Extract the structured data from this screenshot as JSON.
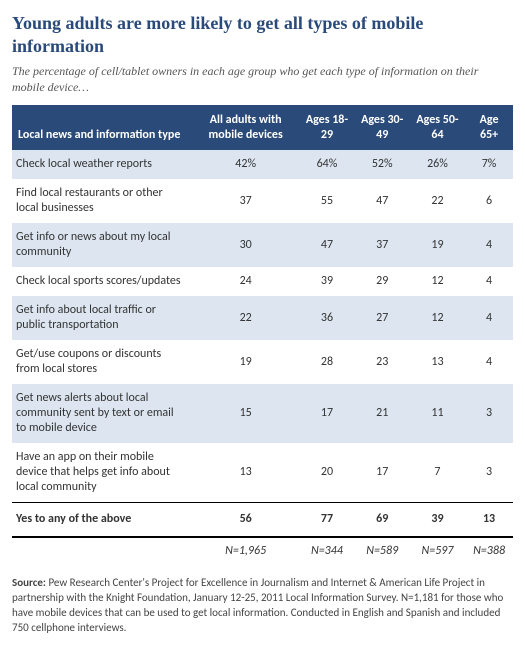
{
  "title": "Young adults are more likely to get all types of mobile information",
  "subtitle": "The percentage of cell/tablet owners in each age group who get each type of information on their mobile device…",
  "columns": [
    "Local news and information type",
    "All adults with mobile devices",
    "Ages 18-29",
    "Ages 30-49",
    "Ages 50-64",
    "Age 65+"
  ],
  "rows": [
    {
      "label": "Check local weather reports",
      "values": [
        "42%",
        "64%",
        "52%",
        "26%",
        "7%"
      ]
    },
    {
      "label": "Find local restaurants or other local businesses",
      "values": [
        "37",
        "55",
        "47",
        "22",
        "6"
      ]
    },
    {
      "label": "Get info or news about my local community",
      "values": [
        "30",
        "47",
        "37",
        "19",
        "4"
      ]
    },
    {
      "label": "Check local sports scores/updates",
      "values": [
        "24",
        "39",
        "29",
        "12",
        "4"
      ]
    },
    {
      "label": "Get info about local traffic or public transportation",
      "values": [
        "22",
        "36",
        "27",
        "12",
        "4"
      ]
    },
    {
      "label": "Get/use coupons or discounts from local stores",
      "values": [
        "19",
        "28",
        "23",
        "13",
        "4"
      ]
    },
    {
      "label": "Get news alerts about local community sent by text or email to mobile device",
      "values": [
        "15",
        "17",
        "21",
        "11",
        "3"
      ]
    },
    {
      "label": "Have an app on their mobile device that helps get info about local community",
      "values": [
        "13",
        "20",
        "17",
        "7",
        "3"
      ]
    }
  ],
  "summary": {
    "label": "Yes to any of the above",
    "values": [
      "56",
      "77",
      "69",
      "39",
      "13"
    ]
  },
  "n_row": [
    "",
    "N=1,965",
    "N=344",
    "N=589",
    "N=597",
    "N=388"
  ],
  "source_label": "Source:",
  "source": " Pew Research Center's Project for Excellence in Journalism and Internet & American Life Project in partnership with the Knight Foundation, January 12-25, 2011 Local Information Survey. N=1,181 for those who have mobile devices that can be used to get local information. Conducted in English and Spanish and included 750 cellphone interviews.",
  "colors": {
    "header_bg": "#2a4a7a",
    "header_text": "#ffffff",
    "stripe_bg": "#dde6f0",
    "title_color": "#2a4a7a"
  },
  "fontsize": {
    "title": 18,
    "subtitle": 12,
    "body": 12,
    "source": 11
  }
}
